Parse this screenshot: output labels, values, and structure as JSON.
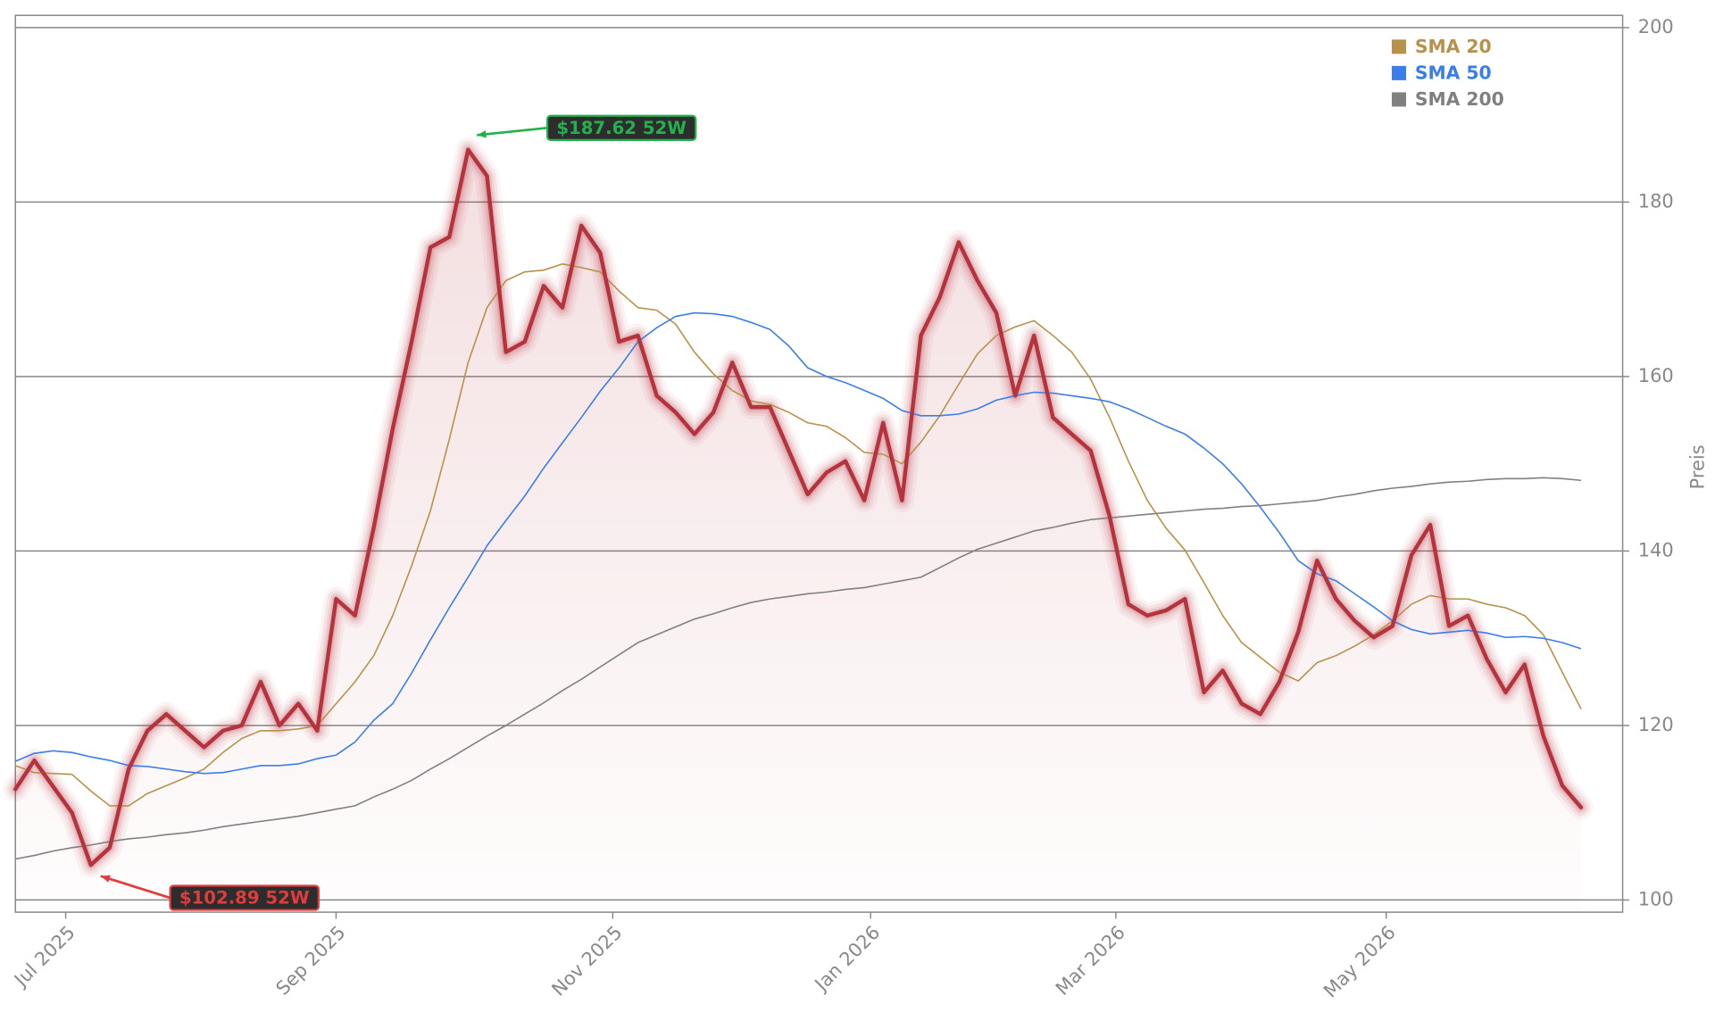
{
  "chart_data": {
    "type": "line",
    "y_label": "Preis",
    "x": [
      0,
      3,
      6,
      9,
      12,
      15,
      18,
      21,
      24,
      27,
      30,
      33,
      36,
      39,
      42,
      45,
      48,
      51,
      54,
      57,
      60,
      63,
      66,
      69,
      72,
      75,
      78,
      81,
      84,
      87,
      90,
      93,
      96,
      99,
      102,
      105,
      108,
      111,
      114,
      117,
      120,
      123,
      126,
      129,
      132,
      135,
      138,
      141,
      144,
      147,
      150,
      153,
      156,
      159,
      162,
      165,
      168,
      171,
      174,
      177,
      180,
      183,
      186,
      189,
      192,
      195,
      198,
      201,
      204,
      207,
      210,
      213,
      216,
      219,
      222,
      225,
      228,
      231,
      234,
      237,
      240,
      243,
      246,
      249
    ],
    "values": [
      112.7,
      116,
      113,
      110,
      104,
      106,
      115,
      119.4,
      121.3,
      119.4,
      117.5,
      119.4,
      120,
      125,
      120,
      122.5,
      119.4,
      134.5,
      132.6,
      142.7,
      154,
      164,
      174.8,
      176,
      186,
      183,
      162.8,
      164,
      170.4,
      167.9,
      177.3,
      174.2,
      164,
      164.7,
      157.8,
      155.9,
      153.4,
      155.9,
      161.6,
      156.5,
      156.5,
      151.5,
      146.5,
      149,
      150.3,
      145.8,
      154.7,
      145.8,
      164.7,
      169.1,
      175.4,
      171,
      167.3,
      157.8,
      164.7,
      155.3,
      153.4,
      151.5,
      144,
      133.9,
      132.6,
      133.2,
      134.5,
      123.8,
      126.3,
      122.5,
      121.3,
      125,
      130.7,
      138.9,
      134.5,
      132,
      130.1,
      131.4,
      139.5,
      143,
      131.4,
      132.6,
      127.6,
      123.8,
      127,
      118.8,
      113.1,
      110.6
    ],
    "color": "#b5333d",
    "series": [
      {
        "name": "SMA 20",
        "color": "#b8914a",
        "values": [
          115.4,
          114.6,
          114.5,
          114.4,
          112.5,
          110.8,
          110.8,
          112.2,
          113.1,
          114,
          115,
          116.9,
          118.5,
          119.4,
          119.4,
          119.6,
          120,
          122.5,
          125,
          128,
          132.6,
          138.3,
          144.6,
          152.8,
          161.6,
          167.9,
          171,
          172,
          172.2,
          172.9,
          172.5,
          172,
          169.8,
          167.9,
          167.6,
          166,
          162.8,
          160.3,
          158.4,
          157.2,
          156.8,
          155.9,
          154.7,
          154.3,
          153,
          151.3,
          151.1,
          150,
          152.5,
          155.5,
          159.1,
          162.6,
          164.7,
          165.7,
          166.4,
          164.7,
          162.8,
          159.7,
          155.3,
          150.3,
          145.8,
          142.6,
          140.1,
          136.4,
          132.6,
          129.5,
          127.8,
          126.1,
          125.1,
          127.2,
          128,
          129.1,
          130.4,
          132,
          133.9,
          134.9,
          134.5,
          134.5,
          133.9,
          133.5,
          132.6,
          130.4,
          126.1,
          121.9
        ]
      },
      {
        "name": "SMA 50",
        "color": "#3b7de9",
        "values": [
          115.9,
          116.8,
          117.1,
          116.9,
          116.4,
          116,
          115.4,
          115.3,
          115,
          114.7,
          114.5,
          114.6,
          115,
          115.4,
          115.4,
          115.6,
          116.2,
          116.6,
          118.1,
          120.6,
          122.5,
          126,
          129.8,
          133.5,
          137,
          140.6,
          143.5,
          146.3,
          149.5,
          152.4,
          155.3,
          158.3,
          161,
          164,
          165.6,
          166.9,
          167.3,
          167.2,
          166.9,
          166.2,
          165.4,
          163.5,
          161,
          160,
          159.3,
          158.4,
          157.5,
          156.1,
          155.5,
          155.5,
          155.7,
          156.3,
          157.3,
          157.8,
          158.2,
          158.1,
          157.8,
          157.5,
          157.1,
          156.3,
          155.3,
          154.3,
          153.4,
          151.8,
          150,
          147.7,
          145,
          142.1,
          138.9,
          137.4,
          136.6,
          135.1,
          133.6,
          132,
          131,
          130.5,
          130.7,
          130.9,
          130.6,
          130.1,
          130.2,
          130,
          129.5,
          128.8
        ]
      },
      {
        "name": "SMA 200",
        "color": "#808080",
        "values": [
          104.7,
          105.1,
          105.6,
          106,
          106.3,
          106.7,
          107,
          107.2,
          107.5,
          107.7,
          108,
          108.4,
          108.7,
          109,
          109.3,
          109.6,
          110,
          110.4,
          110.8,
          111.8,
          112.7,
          113.7,
          115,
          116.2,
          117.5,
          118.8,
          120,
          121.3,
          122.6,
          124,
          125.3,
          126.7,
          128.1,
          129.5,
          130.4,
          131.3,
          132.2,
          132.8,
          133.5,
          134.1,
          134.5,
          134.8,
          135.1,
          135.3,
          135.6,
          135.8,
          136.2,
          136.6,
          137,
          138.1,
          139.2,
          140.2,
          140.9,
          141.6,
          142.3,
          142.7,
          143.2,
          143.6,
          143.8,
          144,
          144.2,
          144.4,
          144.6,
          144.8,
          144.9,
          145.1,
          145.2,
          145.4,
          145.6,
          145.8,
          146.2,
          146.5,
          146.9,
          147.2,
          147.4,
          147.7,
          147.9,
          148,
          148.2,
          148.3,
          148.3,
          148.4,
          148.3,
          148.1
        ]
      }
    ],
    "annotations": [
      {
        "text": "$187.62 52W",
        "x": 72.7,
        "y": 187.62,
        "color": "#22b14c"
      },
      {
        "text": "$102.89 52W",
        "x": 12.9,
        "y": 102.89,
        "color": "#e03c3c"
      }
    ],
    "xlim": [
      0,
      255.6
    ],
    "ylim": [
      98.6,
      201.4
    ],
    "xticks": [
      {
        "value": 8,
        "label": "Jul 2025"
      },
      {
        "value": 51,
        "label": "Sep 2025"
      },
      {
        "value": 95,
        "label": "Nov 2025"
      },
      {
        "value": 136,
        "label": "Jan 2026"
      },
      {
        "value": 175,
        "label": "Mar 2026"
      },
      {
        "value": 218,
        "label": "May 2026"
      }
    ],
    "yticks": [
      100,
      120,
      140,
      160,
      180,
      200
    ],
    "grid": true,
    "legend": "upper right"
  }
}
